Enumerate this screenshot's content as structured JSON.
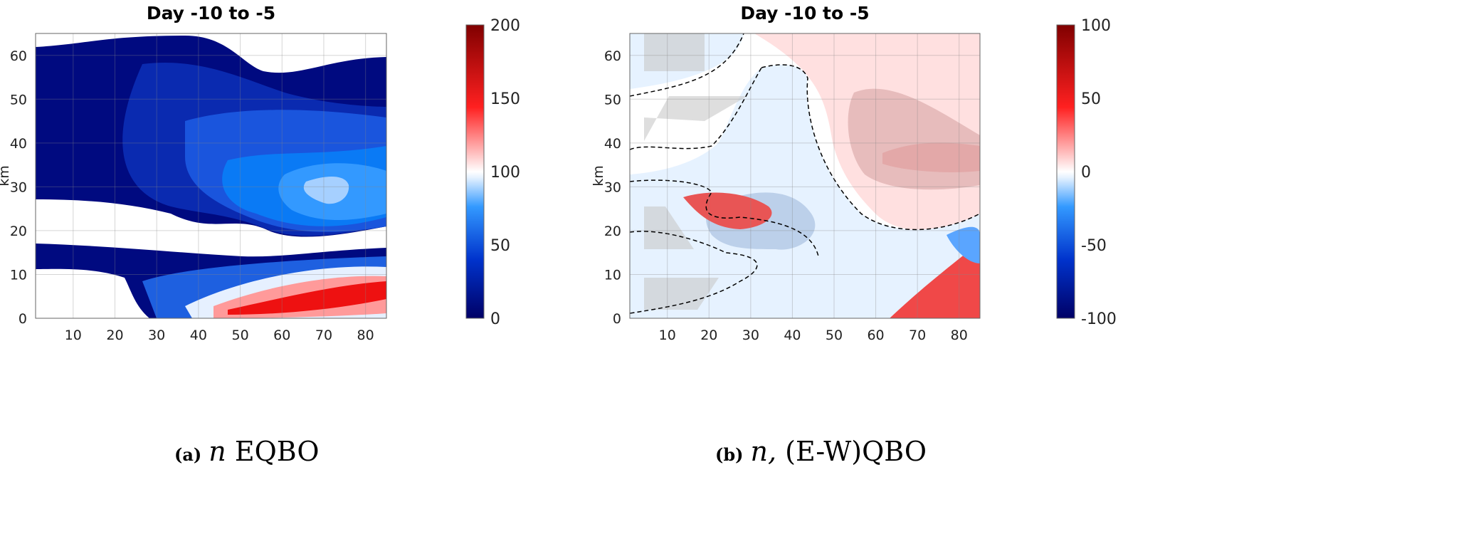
{
  "chart_data": [
    {
      "type": "heatmap",
      "subtype": "filled contour",
      "title": "Day -10 to -5",
      "ylabel": "km",
      "xlabel": "",
      "xlim": [
        1,
        85
      ],
      "ylim": [
        0,
        65
      ],
      "xticks": [
        10,
        20,
        30,
        40,
        50,
        60,
        70,
        80
      ],
      "yticks": [
        0,
        10,
        20,
        30,
        40,
        50,
        60
      ],
      "grid": true,
      "colorbar": {
        "min": 0,
        "max": 200,
        "ticks": [
          0,
          50,
          100,
          150,
          200
        ],
        "colormap": "blue-white-red",
        "low_color": "#000066",
        "mid_color": "#ffffff",
        "high_color": "#800000"
      },
      "caption_label": "(a)",
      "caption_var": "n",
      "caption_text": "EQBO"
    },
    {
      "type": "heatmap",
      "subtype": "filled contour with dashed zero contour and grey significance shading",
      "title": "Day -10 to -5",
      "ylabel": "km",
      "xlabel": "",
      "xlim": [
        1,
        85
      ],
      "ylim": [
        0,
        65
      ],
      "xticks": [
        10,
        20,
        30,
        40,
        50,
        60,
        70,
        80
      ],
      "yticks": [
        0,
        10,
        20,
        30,
        40,
        50,
        60
      ],
      "grid": true,
      "colorbar": {
        "min": -100,
        "max": 100,
        "ticks": [
          -100,
          -50,
          0,
          50,
          100
        ],
        "tick_labels": [
          "-100",
          "-50",
          "0",
          "50",
          "100"
        ],
        "colormap": "blue-white-red",
        "low_color": "#000066",
        "mid_color": "#ffffff",
        "high_color": "#800000"
      },
      "caption_label": "(b)",
      "caption_var": "n,",
      "caption_text": "(E-W)QBO"
    }
  ]
}
